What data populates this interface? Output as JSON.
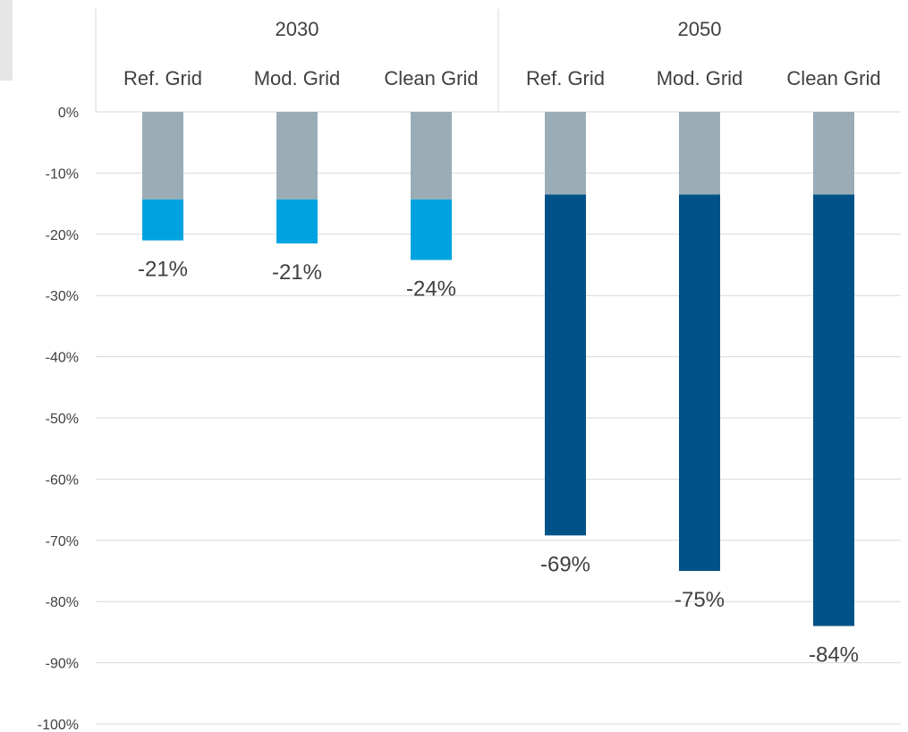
{
  "chart_data": {
    "type": "bar",
    "stacked": true,
    "groups": [
      {
        "label": "2030",
        "categories": [
          "Ref. Grid",
          "Mod. Grid",
          "Clean Grid"
        ]
      },
      {
        "label": "2050",
        "categories": [
          "Ref. Grid",
          "Mod. Grid",
          "Clean Grid"
        ]
      }
    ],
    "categories": [
      "Ref. Grid",
      "Mod. Grid",
      "Clean Grid",
      "Ref. Grid",
      "Mod. Grid",
      "Clean Grid"
    ],
    "series": [
      {
        "values": [
          -14.3,
          -14.3,
          -14.3,
          -13.5,
          -13.5,
          -13.5
        ],
        "color": "#9aadb6"
      },
      {
        "values": [
          -6.7,
          -7.2,
          -9.9,
          -55.7,
          -61.5,
          -70.5
        ],
        "colors": [
          "#00a3e0",
          "#00a3e0",
          "#00a3e0",
          "#005288",
          "#005288",
          "#005288"
        ]
      }
    ],
    "totals": [
      -21,
      -21.5,
      -24.2,
      -69.2,
      -75,
      -84
    ],
    "data_labels": [
      "-21%",
      "-21%",
      "-24%",
      "-69%",
      "-75%",
      "-84%"
    ],
    "yticks": [
      "0%",
      "-10%",
      "-20%",
      "-30%",
      "-40%",
      "-50%",
      "-60%",
      "-70%",
      "-80%",
      "-90%",
      "-100%"
    ],
    "ylim": [
      -100,
      0
    ],
    "grid": true,
    "legend": "none",
    "title": "",
    "xlabel": "",
    "ylabel": ""
  }
}
